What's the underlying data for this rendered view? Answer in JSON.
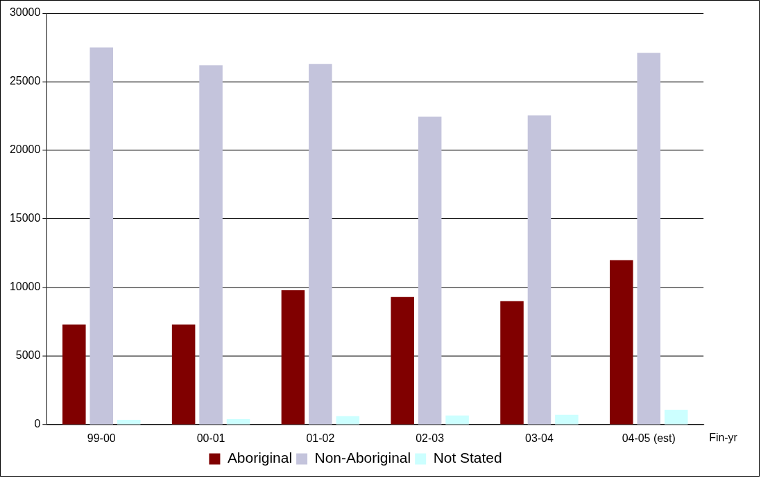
{
  "chart_data": {
    "type": "bar",
    "xlabel": "Fin-yr",
    "categories": [
      "99-00",
      "00-01",
      "01-02",
      "02-03",
      "03-04",
      "04-05 (est)"
    ],
    "series": [
      {
        "name": "Aboriginal",
        "color": "#800000",
        "values": [
          7300,
          7300,
          9800,
          9300,
          9000,
          12000
        ]
      },
      {
        "name": "Non-Aboriginal",
        "color": "#c4c4dc",
        "values": [
          27500,
          26200,
          26300,
          22450,
          22550,
          27100
        ]
      },
      {
        "name": "Not Stated",
        "color": "#ccffff",
        "values": [
          360,
          400,
          620,
          670,
          720,
          1080
        ]
      }
    ],
    "ylim": [
      0,
      30000
    ],
    "yticks": [
      0,
      5000,
      10000,
      15000,
      20000,
      25000,
      30000
    ],
    "grid": "y",
    "legend": "bottom"
  }
}
